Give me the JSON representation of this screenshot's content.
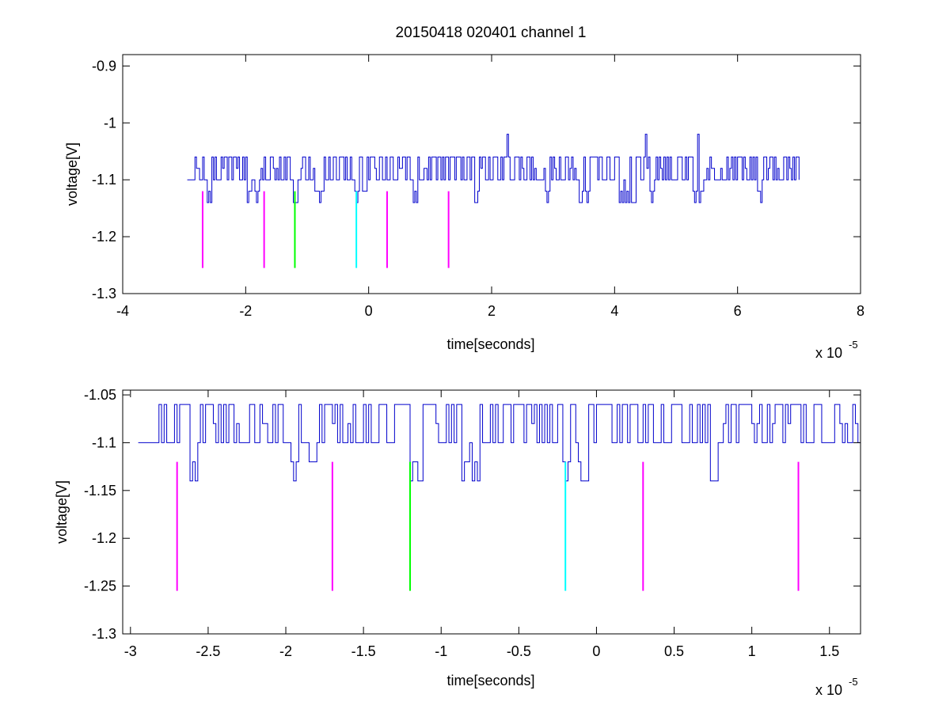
{
  "figure_title": "20150418 020401 channel 1",
  "colors": {
    "signal": "#0000cc",
    "marker_magenta": "#ff00ff",
    "marker_green": "#00ff00",
    "marker_cyan": "#00ffff",
    "axes": "#000000",
    "background": "#ffffff"
  },
  "chart_data": [
    {
      "type": "line",
      "name": "top",
      "title": "20150418 020401 channel 1",
      "xlabel": "time[seconds]",
      "ylabel": "voltage[V]",
      "x_multiplier_base": "x 10",
      "x_multiplier_exp": "-5",
      "xlim": [
        -4,
        8
      ],
      "ylim": [
        -1.3,
        -0.88
      ],
      "xticks": [
        -4,
        -2,
        0,
        2,
        4,
        6,
        8
      ],
      "xtick_labels": [
        "-4",
        "-2",
        "0",
        "2",
        "4",
        "6",
        "8"
      ],
      "yticks": [
        -1.3,
        -1.2,
        -1.1,
        -1.0,
        -0.9
      ],
      "ytick_labels": [
        "-1.3",
        "-1.2",
        "-1.1",
        "-1",
        "-0.9"
      ],
      "grid": false,
      "series": [
        {
          "color": "#0000cc",
          "x_start": -2.95,
          "x_end": 7.0,
          "baseline": -1.1,
          "levels": [
            -1.14,
            -1.1,
            -1.06,
            -1.02
          ],
          "spikes_up": [
            2.25,
            4.5,
            5.35
          ],
          "dips": [
            -2.6,
            -1.95,
            -1.83,
            -1.19,
            -0.85,
            -0.78,
            -0.2,
            -0.08,
            0.75,
            1.75,
            2.9,
            3.45,
            3.55,
            4.1,
            4.2,
            4.3,
            4.6,
            5.3,
            5.4,
            6.35
          ]
        }
      ],
      "markers": [
        {
          "x": -2.7,
          "y_from": -1.255,
          "y_to": -1.12,
          "color": "#ff00ff"
        },
        {
          "x": -1.7,
          "y_from": -1.255,
          "y_to": -1.12,
          "color": "#ff00ff"
        },
        {
          "x": -1.2,
          "y_from": -1.255,
          "y_to": -1.12,
          "color": "#00ff00"
        },
        {
          "x": -0.2,
          "y_from": -1.255,
          "y_to": -1.12,
          "color": "#00ffff"
        },
        {
          "x": 0.3,
          "y_from": -1.255,
          "y_to": -1.12,
          "color": "#ff00ff"
        },
        {
          "x": 1.3,
          "y_from": -1.255,
          "y_to": -1.12,
          "color": "#ff00ff"
        }
      ]
    },
    {
      "type": "line",
      "name": "bottom",
      "title": "",
      "xlabel": "time[seconds]",
      "ylabel": "voltage[V]",
      "x_multiplier_base": "x 10",
      "x_multiplier_exp": "-5",
      "xlim": [
        -3.05,
        1.7
      ],
      "ylim": [
        -1.3,
        -1.045
      ],
      "xticks": [
        -3,
        -2.5,
        -2,
        -1.5,
        -1,
        -0.5,
        0,
        0.5,
        1,
        1.5
      ],
      "xtick_labels": [
        "-3",
        "-2.5",
        "-2",
        "-1.5",
        "-1",
        "-0.5",
        "0",
        "0.5",
        "1",
        "1.5"
      ],
      "yticks": [
        -1.3,
        -1.25,
        -1.2,
        -1.15,
        -1.1,
        -1.05
      ],
      "ytick_labels": [
        "-1.3",
        "-1.25",
        "-1.2",
        "-1.15",
        "-1.1",
        "-1.05"
      ],
      "grid": false,
      "series": [
        {
          "color": "#0000cc",
          "x_start": -2.95,
          "x_end": 1.7,
          "baseline": -1.1,
          "levels": [
            -1.14,
            -1.1,
            -1.06
          ],
          "dips": [
            -2.6,
            -1.95,
            -1.83,
            -1.19,
            -1.15,
            -0.85,
            -0.79,
            -0.2,
            -0.1,
            -0.08,
            0.75
          ]
        }
      ],
      "markers": [
        {
          "x": -2.7,
          "y_from": -1.255,
          "y_to": -1.12,
          "color": "#ff00ff"
        },
        {
          "x": -1.7,
          "y_from": -1.255,
          "y_to": -1.12,
          "color": "#ff00ff"
        },
        {
          "x": -1.2,
          "y_from": -1.255,
          "y_to": -1.12,
          "color": "#00ff00"
        },
        {
          "x": -0.2,
          "y_from": -1.255,
          "y_to": -1.12,
          "color": "#00ffff"
        },
        {
          "x": 0.3,
          "y_from": -1.255,
          "y_to": -1.12,
          "color": "#ff00ff"
        },
        {
          "x": 1.3,
          "y_from": -1.255,
          "y_to": -1.12,
          "color": "#ff00ff"
        }
      ]
    }
  ]
}
